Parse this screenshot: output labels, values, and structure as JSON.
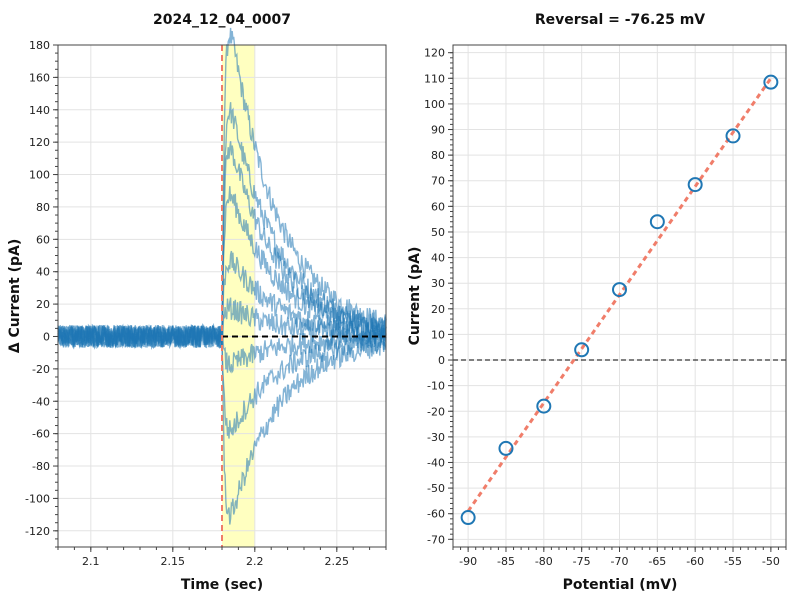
{
  "chart_data": [
    {
      "type": "line",
      "title": "2024_12_04_0007",
      "xlabel": "Time (sec)",
      "ylabel": "Δ Current (pA)",
      "xlim": [
        2.08,
        2.28
      ],
      "ylim": [
        -130,
        180
      ],
      "xticks": [
        "2.1",
        "2.15",
        "2.2",
        "2.25"
      ],
      "yticks": [
        "-120",
        "-100",
        "-80",
        "-60",
        "-40",
        "-20",
        "0",
        "20",
        "40",
        "60",
        "80",
        "100",
        "120",
        "140",
        "160",
        "180"
      ],
      "grid": true,
      "stimulus_time": 2.18,
      "highlight_range": [
        2.18,
        2.2
      ],
      "baseline": 0,
      "series_peaks_pA": [
        160,
        120,
        100,
        75,
        40,
        15,
        -15,
        -50,
        -95
      ],
      "colors": {
        "trace": "#1f77b4",
        "stimulus_line": "#f07d6a",
        "highlight": "#ffffc0",
        "baseline": "#000000"
      }
    },
    {
      "type": "scatter",
      "title": "Reversal = -76.25 mV",
      "xlabel": "Potential (mV)",
      "ylabel": "Current (pA)",
      "xlim": [
        -92,
        -48
      ],
      "ylim": [
        -73,
        123
      ],
      "xticks": [
        "-90",
        "-85",
        "-80",
        "-75",
        "-70",
        "-65",
        "-60",
        "-55",
        "-50"
      ],
      "yticks": [
        "-70",
        "-60",
        "-50",
        "-40",
        "-30",
        "-20",
        "-10",
        "0",
        "10",
        "20",
        "30",
        "40",
        "50",
        "60",
        "70",
        "80",
        "90",
        "100",
        "110",
        "120"
      ],
      "grid": true,
      "x": [
        -90,
        -85,
        -80,
        -75,
        -70,
        -65,
        -60,
        -55,
        -50
      ],
      "y": [
        -61.5,
        -34.5,
        -18,
        4,
        27.5,
        54,
        68.5,
        87.5,
        108.5
      ],
      "fit_line": {
        "x": [
          -90,
          -50
        ],
        "y": [
          -59,
          110
        ]
      },
      "zero_line": 0,
      "colors": {
        "marker": "#1f77b4",
        "fit": "#f07d6a",
        "zero": "#000000"
      }
    }
  ]
}
